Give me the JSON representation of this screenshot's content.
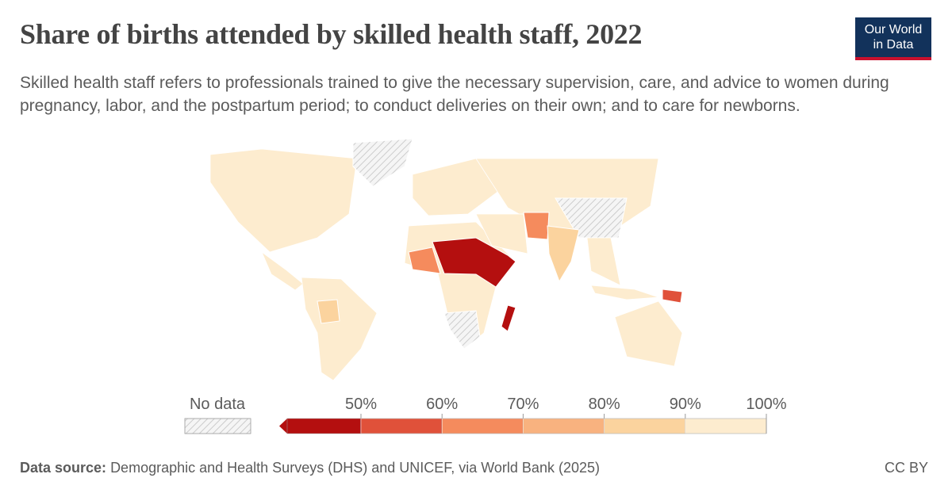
{
  "header": {
    "title": "Share of births attended by skilled health staff, 2022",
    "subtitle": "Skilled health staff refers to professionals trained to give the necessary supervision, care, and advice to women during pregnancy, labor, and the postpartum period; to conduct deliveries on their own; and to care for newborns.",
    "logo": [
      "Our World",
      "in Data"
    ]
  },
  "legend": {
    "no_data_label": "No data",
    "ticks": [
      {
        "value": 50,
        "label": "50%"
      },
      {
        "value": 60,
        "label": "60%"
      },
      {
        "value": 70,
        "label": "70%"
      },
      {
        "value": 80,
        "label": "80%"
      },
      {
        "value": 90,
        "label": "90%"
      },
      {
        "value": 100,
        "label": "100%"
      }
    ],
    "colors": [
      "#b40f0f",
      "#e0513a",
      "#f58b5d",
      "#f8b27f",
      "#fbd39e",
      "#fdeccf"
    ]
  },
  "footer": {
    "source_label": "Data source:",
    "source": "Demographic and Health Surveys (DHS) and UNICEF, via World Bank (2025)",
    "license": "CC BY"
  }
}
